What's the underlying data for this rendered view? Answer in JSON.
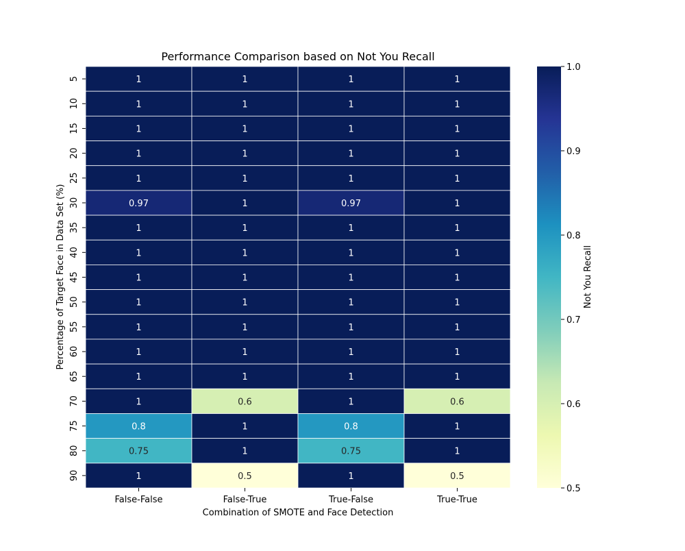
{
  "chart_data": {
    "type": "heatmap",
    "title": "Performance Comparison based on Not You Recall",
    "xlabel": "Combination of SMOTE and Face Detection",
    "ylabel": "Percentage of Target Face in Data Set (%)",
    "x_categories": [
      "False-False",
      "False-True",
      "True-False",
      "True-True"
    ],
    "y_categories": [
      "5",
      "10",
      "15",
      "20",
      "25",
      "30",
      "35",
      "40",
      "45",
      "50",
      "55",
      "60",
      "65",
      "70",
      "75",
      "80",
      "90"
    ],
    "values": [
      [
        1,
        1,
        1,
        1
      ],
      [
        1,
        1,
        1,
        1
      ],
      [
        1,
        1,
        1,
        1
      ],
      [
        1,
        1,
        1,
        1
      ],
      [
        1,
        1,
        1,
        1
      ],
      [
        0.97,
        1,
        0.97,
        1
      ],
      [
        1,
        1,
        1,
        1
      ],
      [
        1,
        1,
        1,
        1
      ],
      [
        1,
        1,
        1,
        1
      ],
      [
        1,
        1,
        1,
        1
      ],
      [
        1,
        1,
        1,
        1
      ],
      [
        1,
        1,
        1,
        1
      ],
      [
        1,
        1,
        1,
        1
      ],
      [
        1,
        0.6,
        1,
        0.6
      ],
      [
        0.8,
        1,
        0.8,
        1
      ],
      [
        0.75,
        1,
        0.75,
        1
      ],
      [
        1,
        0.5,
        1,
        0.5
      ]
    ],
    "colorbar": {
      "label": "Not You Recall",
      "range": [
        0.5,
        1.0
      ],
      "ticks": [
        "0.5",
        "0.6",
        "0.7",
        "0.8",
        "0.9",
        "1.0"
      ],
      "colormap": "YlGnBu"
    }
  }
}
